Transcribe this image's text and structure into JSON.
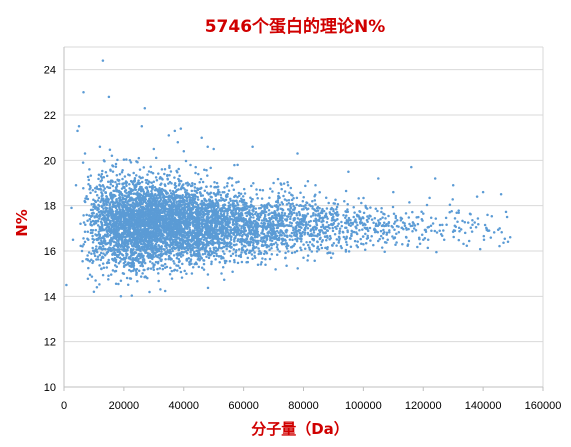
{
  "colors": {
    "title": "#d00000",
    "axis_label": "#d00000",
    "point": "#5b9bd5",
    "grid": "#d9d9d9",
    "axis": "#bfbfbf"
  },
  "chart_data": {
    "type": "scatter",
    "title": "5746个蛋白的理论N%",
    "xlabel": "分子量（Da）",
    "ylabel": "N%",
    "xlim": [
      0,
      160000
    ],
    "ylim": [
      10,
      25
    ],
    "x_ticks": [
      0,
      20000,
      40000,
      60000,
      80000,
      100000,
      120000,
      140000,
      160000
    ],
    "y_ticks": [
      10,
      12,
      14,
      16,
      18,
      20,
      22,
      24
    ],
    "x_tick_labels": [
      "0",
      "20000",
      "40000",
      "60000",
      "80000",
      "100000",
      "120000",
      "140000",
      "160000"
    ],
    "y_tick_labels": [
      "10",
      "12",
      "14",
      "16",
      "18",
      "20",
      "22",
      "24"
    ],
    "grid": "horizontal",
    "legend": "none",
    "series": [
      {
        "point_count": 5746,
        "points": [
          [
            800,
            14.5
          ],
          [
            2500,
            17.9
          ],
          [
            3000,
            16.5
          ],
          [
            4000,
            18.9
          ],
          [
            4500,
            21.3
          ],
          [
            5000,
            21.5
          ],
          [
            5500,
            17.2
          ],
          [
            6000,
            16.0
          ],
          [
            6500,
            23.0
          ],
          [
            7000,
            20.3
          ],
          [
            8000,
            15.6
          ],
          [
            8500,
            19.6
          ],
          [
            9000,
            16.8
          ],
          [
            10000,
            14.2
          ],
          [
            11000,
            14.4
          ],
          [
            12000,
            20.6
          ],
          [
            13000,
            24.4
          ],
          [
            14000,
            16.3
          ],
          [
            15000,
            22.8
          ],
          [
            16000,
            20.2
          ],
          [
            17000,
            15.1
          ],
          [
            18000,
            17.5
          ],
          [
            19000,
            14.0
          ],
          [
            20000,
            15.0
          ],
          [
            22000,
            20.0
          ],
          [
            24000,
            18.7
          ],
          [
            25000,
            20.1
          ],
          [
            26000,
            21.5
          ],
          [
            27000,
            22.3
          ],
          [
            28000,
            15.2
          ],
          [
            30000,
            20.5
          ],
          [
            32000,
            19.2
          ],
          [
            33000,
            15.2
          ],
          [
            35000,
            21.1
          ],
          [
            37000,
            21.3
          ],
          [
            38000,
            20.8
          ],
          [
            39000,
            21.4
          ],
          [
            40000,
            20.4
          ],
          [
            42000,
            15.4
          ],
          [
            44000,
            19.7
          ],
          [
            46000,
            21.0
          ],
          [
            48000,
            20.6
          ],
          [
            50000,
            20.5
          ],
          [
            52000,
            15.5
          ],
          [
            55000,
            19.2
          ],
          [
            58000,
            19.8
          ],
          [
            61000,
            15.5
          ],
          [
            63000,
            20.6
          ],
          [
            66000,
            15.5
          ],
          [
            70000,
            19.0
          ],
          [
            74000,
            15.7
          ],
          [
            78000,
            20.3
          ],
          [
            80000,
            15.7
          ],
          [
            84000,
            18.9
          ],
          [
            88000,
            15.9
          ],
          [
            95000,
            19.5
          ],
          [
            100000,
            16.3
          ],
          [
            105000,
            19.2
          ],
          [
            110000,
            18.6
          ],
          [
            113000,
            16.3
          ],
          [
            116000,
            19.7
          ],
          [
            120000,
            16.5
          ],
          [
            124000,
            19.2
          ],
          [
            127000,
            16.5
          ],
          [
            130000,
            18.9
          ],
          [
            134000,
            16.8
          ],
          [
            138000,
            18.4
          ],
          [
            140000,
            18.6
          ],
          [
            142000,
            16.9
          ],
          [
            146000,
            18.5
          ],
          [
            148000,
            17.5
          ]
        ]
      }
    ]
  }
}
